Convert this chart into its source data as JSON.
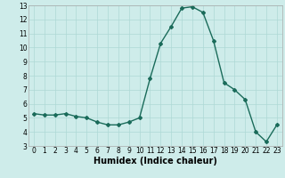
{
  "x": [
    0,
    1,
    2,
    3,
    4,
    5,
    6,
    7,
    8,
    9,
    10,
    11,
    12,
    13,
    14,
    15,
    16,
    17,
    18,
    19,
    20,
    21,
    22,
    23
  ],
  "y": [
    5.3,
    5.2,
    5.2,
    5.3,
    5.1,
    5.0,
    4.7,
    4.5,
    4.5,
    4.7,
    5.0,
    7.8,
    10.3,
    11.5,
    12.8,
    12.9,
    12.5,
    10.5,
    7.5,
    7.0,
    6.3,
    4.0,
    3.3,
    4.5
  ],
  "line_color": "#1a6b5a",
  "marker": "D",
  "marker_size": 2.0,
  "bg_color": "#ceecea",
  "grid_color": "#aed8d5",
  "xlabel": "Humidex (Indice chaleur)",
  "ylim": [
    3,
    13
  ],
  "xlim": [
    -0.5,
    23.5
  ],
  "yticks": [
    3,
    4,
    5,
    6,
    7,
    8,
    9,
    10,
    11,
    12,
    13
  ],
  "xticks": [
    0,
    1,
    2,
    3,
    4,
    5,
    6,
    7,
    8,
    9,
    10,
    11,
    12,
    13,
    14,
    15,
    16,
    17,
    18,
    19,
    20,
    21,
    22,
    23
  ],
  "tick_fontsize": 5.5,
  "xlabel_fontsize": 7.0,
  "line_width": 1.0
}
